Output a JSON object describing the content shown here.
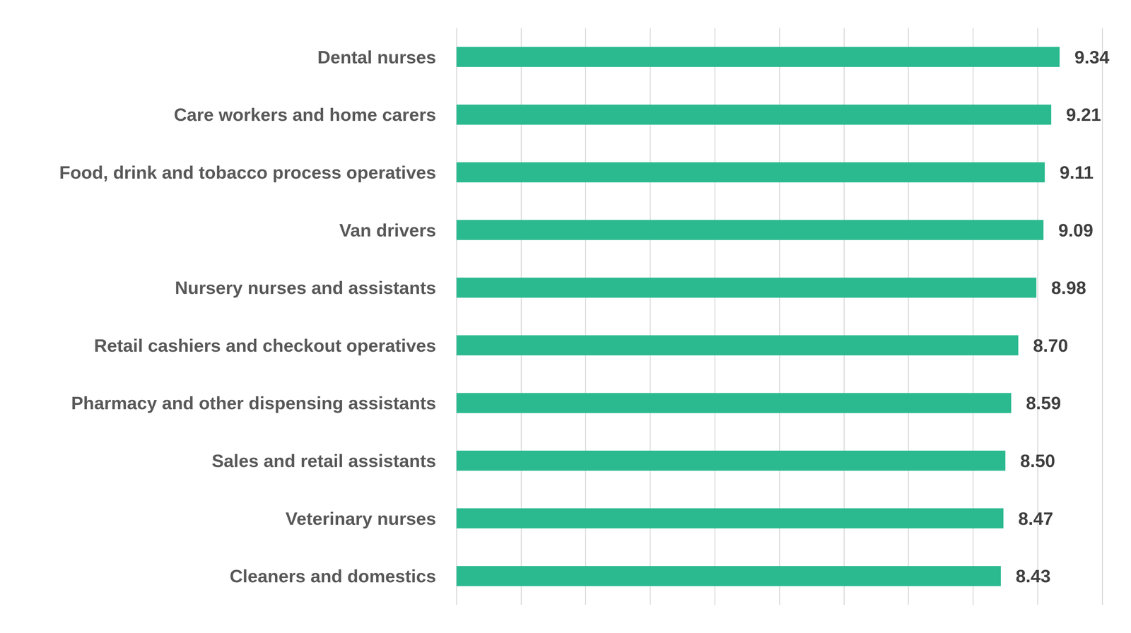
{
  "chart_data": {
    "type": "bar",
    "orientation": "horizontal",
    "categories": [
      "Dental nurses",
      "Care workers and home carers",
      "Food, drink and tobacco process operatives",
      "Van drivers",
      "Nursery nurses and assistants",
      "Retail cashiers and checkout operatives",
      "Pharmacy and other dispensing assistants",
      "Sales and retail assistants",
      "Veterinary nurses",
      "Cleaners and domestics"
    ],
    "values": [
      9.34,
      9.21,
      9.11,
      9.09,
      8.98,
      8.7,
      8.59,
      8.5,
      8.47,
      8.43
    ],
    "value_labels": [
      "9.34",
      "9.21",
      "9.11",
      "9.09",
      "8.98",
      "8.70",
      "8.59",
      "8.50",
      "8.47",
      "8.43"
    ],
    "color": "#2bb98f",
    "xlim": [
      0,
      10
    ],
    "xticks": [
      0,
      1,
      2,
      3,
      4,
      5,
      6,
      7,
      8,
      9,
      10
    ],
    "grid": true,
    "data_labels": true,
    "tick_labels": "y"
  }
}
